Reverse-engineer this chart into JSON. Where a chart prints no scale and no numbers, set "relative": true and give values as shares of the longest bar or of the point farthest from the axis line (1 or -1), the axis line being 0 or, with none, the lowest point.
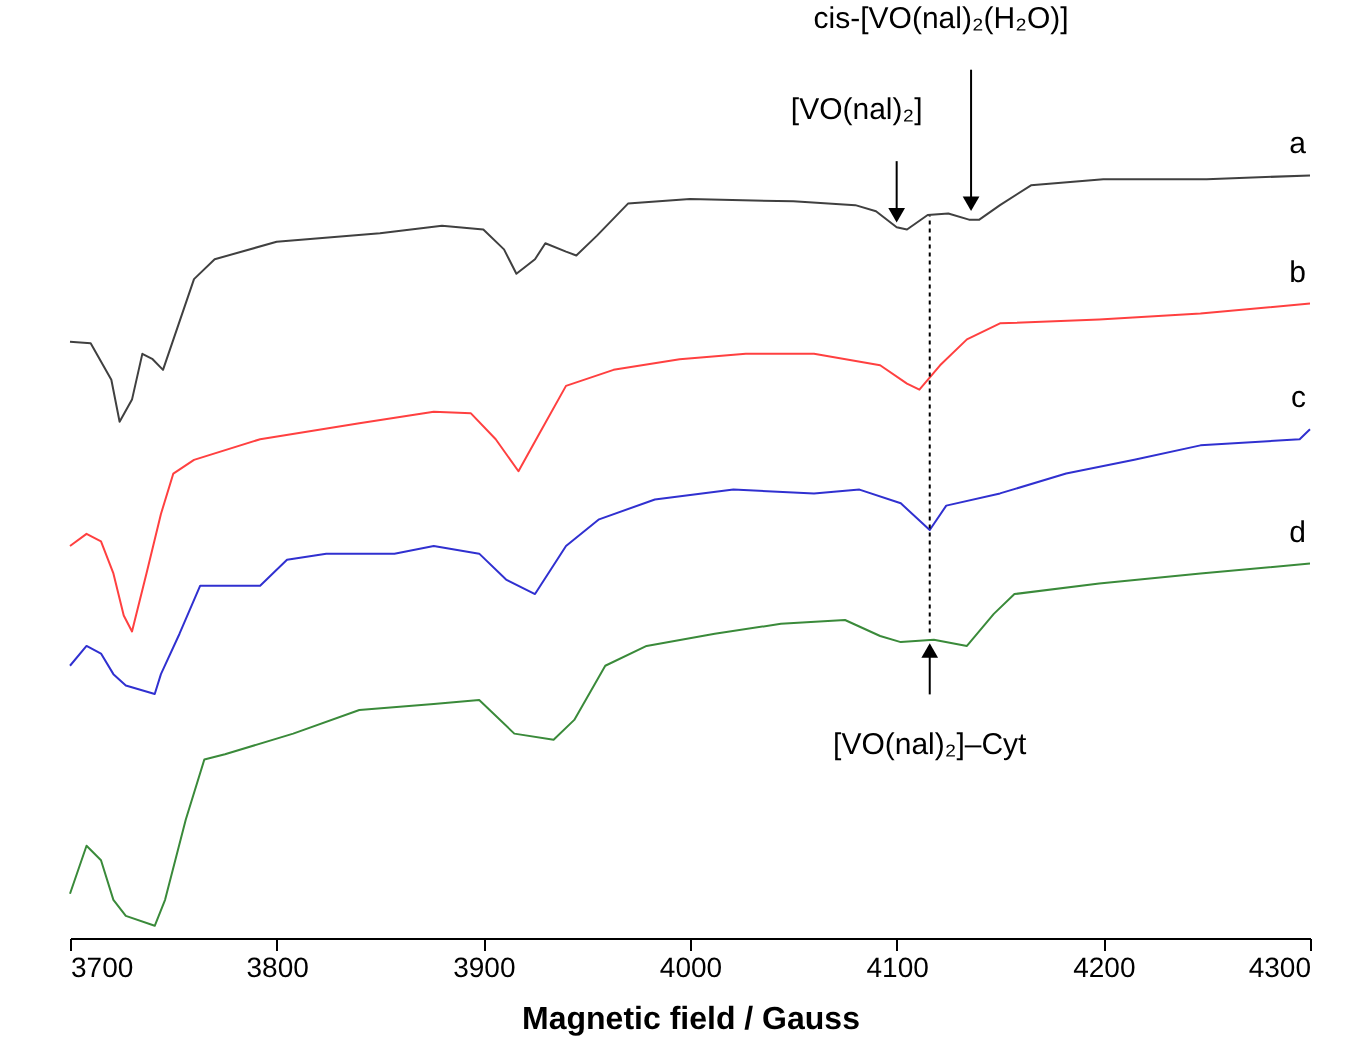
{
  "chart_data": {
    "type": "line",
    "relative": true,
    "xlabel": "Magnetic field / Gauss",
    "xlim": [
      3700,
      4300
    ],
    "xticks": [
      3700,
      3800,
      3900,
      4000,
      4100,
      4200,
      4300
    ],
    "grid": false,
    "legend": false,
    "line_style": "solid",
    "marker": "none",
    "series": [
      {
        "name": "a",
        "color": "#404040",
        "x": [
          3700,
          3710,
          3720,
          3724,
          3730,
          3735,
          3740,
          3745,
          3760,
          3770,
          3800,
          3850,
          3880,
          3900,
          3910,
          3916,
          3925,
          3930,
          3940,
          3945,
          3955,
          3970,
          4000,
          4050,
          4080,
          4090,
          4100,
          4105,
          4115,
          4125,
          4135,
          4140,
          4150,
          4165,
          4200,
          4250,
          4300
        ],
        "values": [
          0.782,
          0.78,
          0.732,
          0.677,
          0.706,
          0.766,
          0.759,
          0.745,
          0.864,
          0.89,
          0.913,
          0.924,
          0.934,
          0.929,
          0.903,
          0.871,
          0.89,
          0.911,
          0.9,
          0.895,
          0.921,
          0.963,
          0.969,
          0.966,
          0.961,
          0.953,
          0.932,
          0.929,
          0.948,
          0.95,
          0.942,
          0.942,
          0.961,
          0.987,
          0.995,
          0.995,
          1.0
        ]
      },
      {
        "name": "b",
        "color": "#ff4040",
        "x": [
          3700,
          3708,
          3715,
          3721,
          3726,
          3730,
          3737,
          3744,
          3750,
          3760,
          3792,
          3840,
          3876,
          3894,
          3906,
          3917,
          3927,
          3940,
          3963,
          3995,
          4027,
          4060,
          4092,
          4105,
          4111,
          4121,
          4134,
          4150,
          4198,
          4247,
          4300
        ],
        "values": [
          0.514,
          0.53,
          0.52,
          0.478,
          0.423,
          0.402,
          0.478,
          0.556,
          0.609,
          0.627,
          0.654,
          0.675,
          0.69,
          0.688,
          0.654,
          0.612,
          0.661,
          0.724,
          0.745,
          0.759,
          0.766,
          0.766,
          0.751,
          0.727,
          0.719,
          0.751,
          0.785,
          0.806,
          0.811,
          0.819,
          0.832
        ]
      },
      {
        "name": "c",
        "color": "#3030d0",
        "x": [
          3700,
          3708,
          3715,
          3721,
          3727,
          3741,
          3744,
          3753,
          3763,
          3792,
          3805,
          3824,
          3857,
          3876,
          3898,
          3911,
          3925,
          3940,
          3956,
          3983,
          4021,
          4060,
          4082,
          4102,
          4116,
          4124,
          4150,
          4182,
          4215,
          4247,
          4295,
          4300
        ],
        "values": [
          0.357,
          0.383,
          0.373,
          0.346,
          0.331,
          0.32,
          0.346,
          0.399,
          0.462,
          0.462,
          0.496,
          0.504,
          0.504,
          0.514,
          0.504,
          0.47,
          0.451,
          0.514,
          0.549,
          0.575,
          0.588,
          0.583,
          0.588,
          0.57,
          0.535,
          0.567,
          0.583,
          0.609,
          0.627,
          0.646,
          0.654,
          0.667
        ]
      },
      {
        "name": "d",
        "color": "#3a8a3a",
        "x": [
          3700,
          3708,
          3715,
          3721,
          3727,
          3741,
          3746,
          3756,
          3765,
          3775,
          3808,
          3840,
          3876,
          3898,
          3915,
          3934,
          3944,
          3959,
          3979,
          4012,
          4044,
          4075,
          4092,
          4102,
          4118,
          4134,
          4147,
          4157,
          4198,
          4247,
          4300
        ],
        "values": [
          0.058,
          0.121,
          0.102,
          0.05,
          0.029,
          0.016,
          0.05,
          0.155,
          0.234,
          0.241,
          0.268,
          0.299,
          0.307,
          0.312,
          0.268,
          0.26,
          0.286,
          0.357,
          0.383,
          0.399,
          0.412,
          0.417,
          0.396,
          0.388,
          0.391,
          0.383,
          0.425,
          0.451,
          0.465,
          0.478,
          0.491
        ]
      }
    ],
    "ref_lines": [
      {
        "axis": "x",
        "value": 4116,
        "label": null,
        "color": "#000000",
        "line_style": "dotted"
      }
    ],
    "annotations": [
      {
        "text": "[VO(nal)₂]",
        "x": 4100,
        "y": 0.94
      },
      {
        "text": "cis-[VO(nal)₂(H₂O)]",
        "x": 4136,
        "y": 0.955
      },
      {
        "text": "[VO(nal)₂]–Cyt",
        "x": 4116,
        "y": 0.385
      }
    ]
  }
}
